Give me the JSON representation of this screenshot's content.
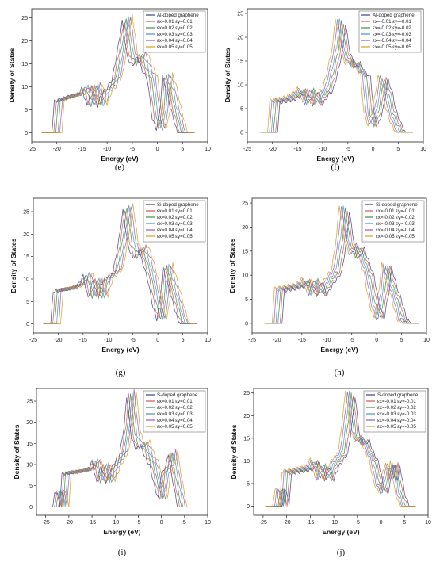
{
  "chart_data": [
    {
      "type": "line",
      "panel": "(e)",
      "xlabel": "Energy (eV)",
      "ylabel": "Density of States",
      "xlim": [
        -25,
        10
      ],
      "ylim": [
        -2,
        27
      ],
      "xticks": [
        -25,
        -20,
        -15,
        -10,
        -5,
        0,
        5,
        10
      ],
      "yticks": [
        0,
        5,
        10,
        15,
        20,
        25
      ],
      "legend": {
        "placement": "top-right"
      },
      "series": [
        {
          "name": "Al-doped graphene",
          "color": "#3a3f8f",
          "shift": -1.0
        },
        {
          "name": "εx=0.01 εy=0.01",
          "color": "#d9534f",
          "shift": -0.6
        },
        {
          "name": "εx=0.02 εy=0.02",
          "color": "#3d8f3d",
          "shift": -0.2
        },
        {
          "name": "εx=0.03 εy=0.03",
          "color": "#4a90c8",
          "shift": 0.2
        },
        {
          "name": "εx=0.04 εy=0.04",
          "color": "#9b59b6",
          "shift": 0.6
        },
        {
          "name": "εx=0.05 εy=0.05",
          "color": "#d4a017",
          "shift": 1.0
        }
      ],
      "profile": [
        [
          -21.5,
          0
        ],
        [
          -20,
          0
        ],
        [
          -19.5,
          7
        ],
        [
          -17,
          8
        ],
        [
          -15,
          8.5
        ],
        [
          -14,
          10
        ],
        [
          -13,
          6
        ],
        [
          -12,
          10.5
        ],
        [
          -11,
          6
        ],
        [
          -10,
          9
        ],
        [
          -9,
          10
        ],
        [
          -8,
          12
        ],
        [
          -7,
          18
        ],
        [
          -6,
          25
        ],
        [
          -5,
          17
        ],
        [
          -4,
          15
        ],
        [
          -3,
          17
        ],
        [
          -2,
          14
        ],
        [
          -1,
          12
        ],
        [
          0,
          3
        ],
        [
          0.8,
          0.8
        ],
        [
          1.5,
          5
        ],
        [
          2,
          12.5
        ],
        [
          3,
          9
        ],
        [
          3.5,
          6
        ],
        [
          4.5,
          2
        ],
        [
          5,
          0
        ],
        [
          6,
          0
        ]
      ]
    },
    {
      "type": "line",
      "panel": "(f)",
      "xlabel": "Energy (eV)",
      "ylabel": "Density of States",
      "xlim": [
        -25,
        10
      ],
      "ylim": [
        -2,
        26
      ],
      "xticks": [
        -25,
        -20,
        -15,
        -10,
        -5,
        0,
        5,
        10
      ],
      "yticks": [
        0,
        5,
        10,
        15,
        20,
        25
      ],
      "legend": {
        "placement": "top-right"
      },
      "series": [
        {
          "name": "Al-doped graphene",
          "color": "#3a3f8f",
          "shift": 1.0
        },
        {
          "name": "εx=-0.01 εy=-0.01",
          "color": "#d9534f",
          "shift": 0.6
        },
        {
          "name": "εx=-0.02 εy=-0.02",
          "color": "#3d8f3d",
          "shift": 0.2
        },
        {
          "name": "εx=-0.03 εy=-0.03",
          "color": "#4a90c8",
          "shift": -0.2
        },
        {
          "name": "εx=-0.04 εy=-0.04",
          "color": "#9b59b6",
          "shift": -0.6
        },
        {
          "name": "εx=-0.05 εy=-0.05",
          "color": "#d4a017",
          "shift": -1.0
        }
      ],
      "profile": [
        [
          -21,
          0
        ],
        [
          -20,
          0
        ],
        [
          -19.5,
          6.5
        ],
        [
          -17,
          7
        ],
        [
          -15,
          8
        ],
        [
          -14,
          9
        ],
        [
          -13,
          6
        ],
        [
          -12,
          9
        ],
        [
          -11,
          6
        ],
        [
          -10,
          8
        ],
        [
          -9,
          9
        ],
        [
          -8,
          13
        ],
        [
          -7,
          18
        ],
        [
          -6.5,
          23.5
        ],
        [
          -5.5,
          17
        ],
        [
          -4.5,
          14
        ],
        [
          -3.5,
          15
        ],
        [
          -2.5,
          13
        ],
        [
          -1.5,
          12
        ],
        [
          -0.8,
          4
        ],
        [
          0,
          1.5
        ],
        [
          1,
          5
        ],
        [
          2,
          11.5
        ],
        [
          3,
          8
        ],
        [
          3.5,
          5
        ],
        [
          4.5,
          2
        ],
        [
          5.5,
          0
        ],
        [
          6.5,
          0
        ]
      ]
    },
    {
      "type": "line",
      "panel": "(g)",
      "xlabel": "Energy (eV)",
      "ylabel": "Density of States",
      "xlim": [
        -25,
        10
      ],
      "ylim": [
        -2,
        28
      ],
      "xticks": [
        -25,
        -20,
        -15,
        -10,
        -5,
        0,
        5,
        10
      ],
      "yticks": [
        0,
        5,
        10,
        15,
        20,
        25
      ],
      "legend": {
        "placement": "top-right"
      },
      "series": [
        {
          "name": "Si-doped graphene",
          "color": "#3a3f8f",
          "shift": -1.0
        },
        {
          "name": "εx=0.01 εy=0.01",
          "color": "#d9534f",
          "shift": -0.6
        },
        {
          "name": "εx=0.02 εy=0.02",
          "color": "#3d8f3d",
          "shift": -0.2
        },
        {
          "name": "εx=0.03 εy=0.03",
          "color": "#4a90c8",
          "shift": 0.2
        },
        {
          "name": "εx=0.04 εy=0.04",
          "color": "#9b59b6",
          "shift": 0.6
        },
        {
          "name": "εx=0.05 εy=0.05",
          "color": "#d4a017",
          "shift": 1.0
        }
      ],
      "profile": [
        [
          -21.5,
          0
        ],
        [
          -20.5,
          0
        ],
        [
          -20,
          7.5
        ],
        [
          -17,
          8
        ],
        [
          -15,
          9
        ],
        [
          -14,
          11
        ],
        [
          -13,
          6
        ],
        [
          -12,
          10
        ],
        [
          -11,
          6
        ],
        [
          -10,
          10
        ],
        [
          -8,
          12
        ],
        [
          -7,
          18
        ],
        [
          -6,
          26
        ],
        [
          -5,
          18
        ],
        [
          -4,
          15
        ],
        [
          -3,
          17
        ],
        [
          -2,
          14
        ],
        [
          -1,
          10
        ],
        [
          0,
          4
        ],
        [
          0.8,
          1
        ],
        [
          1.5,
          6
        ],
        [
          2,
          13
        ],
        [
          3,
          9
        ],
        [
          4,
          5
        ],
        [
          5,
          1
        ],
        [
          5.5,
          0
        ],
        [
          6.5,
          0
        ]
      ]
    },
    {
      "type": "line",
      "panel": "(h)",
      "xlabel": "Energy (eV)",
      "ylabel": "Density of States",
      "xlim": [
        -25,
        10
      ],
      "ylim": [
        -2,
        26
      ],
      "xticks": [
        -25,
        -20,
        -15,
        -10,
        -5,
        0,
        5,
        10
      ],
      "yticks": [
        0,
        5,
        10,
        15,
        20,
        25
      ],
      "legend": {
        "placement": "top-right"
      },
      "series": [
        {
          "name": "Si-doped graphene",
          "color": "#3a3f8f",
          "shift": 1.0
        },
        {
          "name": "εx=-0.01 εy=-0.01",
          "color": "#d9534f",
          "shift": 0.6
        },
        {
          "name": "εx=-0.02 εy=-0.02",
          "color": "#3d8f3d",
          "shift": 0.2
        },
        {
          "name": "εx=-0.03 εy=-0.03",
          "color": "#4a90c8",
          "shift": -0.2
        },
        {
          "name": "εx=-0.04 εy=-0.04",
          "color": "#9b59b6",
          "shift": -0.6
        },
        {
          "name": "εx=-0.05 εy=-0.05",
          "color": "#d4a017",
          "shift": -1.0
        }
      ],
      "profile": [
        [
          -21,
          0
        ],
        [
          -20,
          0
        ],
        [
          -19.5,
          7
        ],
        [
          -17,
          7.5
        ],
        [
          -15,
          8
        ],
        [
          -14,
          9
        ],
        [
          -13,
          6
        ],
        [
          -12,
          9
        ],
        [
          -11,
          6
        ],
        [
          -10,
          8
        ],
        [
          -8,
          11
        ],
        [
          -7,
          18
        ],
        [
          -6.5,
          24
        ],
        [
          -5.5,
          17
        ],
        [
          -4.5,
          14
        ],
        [
          -3.5,
          16
        ],
        [
          -2.5,
          13
        ],
        [
          -1.5,
          10
        ],
        [
          -0.5,
          4
        ],
        [
          0.5,
          1
        ],
        [
          1.5,
          7
        ],
        [
          2,
          12
        ],
        [
          3,
          8
        ],
        [
          4,
          5
        ],
        [
          5,
          1
        ],
        [
          6,
          0
        ],
        [
          7,
          0
        ]
      ]
    },
    {
      "type": "line",
      "panel": "(i)",
      "xlabel": "Energy (eV)",
      "ylabel": "Density of States",
      "xlim": [
        -27,
        10
      ],
      "ylim": [
        -2,
        28
      ],
      "xticks": [
        -25,
        -20,
        -15,
        -10,
        -5,
        0,
        5,
        10
      ],
      "yticks": [
        0,
        5,
        10,
        15,
        20,
        25
      ],
      "legend": {
        "placement": "top-right"
      },
      "series": [
        {
          "name": "S-doped graphene",
          "color": "#3a3f8f",
          "shift": -1.0
        },
        {
          "name": "εx=0.01 εy=0.01",
          "color": "#d9534f",
          "shift": -0.6
        },
        {
          "name": "εx=0.02 εy=0.02",
          "color": "#3d8f3d",
          "shift": -0.2
        },
        {
          "name": "εx=0.03 εy=0.03",
          "color": "#4a90c8",
          "shift": 0.2
        },
        {
          "name": "εx=0.04 εy=0.04",
          "color": "#9b59b6",
          "shift": 0.6
        },
        {
          "name": "εx=0.05 εy=0.05",
          "color": "#d4a017",
          "shift": 1.0
        }
      ],
      "profile": [
        [
          -23.5,
          0
        ],
        [
          -22.5,
          0
        ],
        [
          -22,
          3.5
        ],
        [
          -21.5,
          3.5
        ],
        [
          -21,
          0
        ],
        [
          -20.5,
          8
        ],
        [
          -17,
          8.5
        ],
        [
          -15,
          9
        ],
        [
          -14,
          11
        ],
        [
          -13,
          6
        ],
        [
          -12,
          10
        ],
        [
          -11,
          6
        ],
        [
          -10,
          9
        ],
        [
          -8,
          13
        ],
        [
          -7,
          20
        ],
        [
          -6.5,
          27
        ],
        [
          -5.5,
          17
        ],
        [
          -4.5,
          14
        ],
        [
          -3.5,
          15
        ],
        [
          -2.5,
          12
        ],
        [
          -1.5,
          10
        ],
        [
          -0.5,
          5
        ],
        [
          0.3,
          2
        ],
        [
          1,
          8
        ],
        [
          2,
          10
        ],
        [
          2.5,
          13
        ],
        [
          3,
          9
        ],
        [
          4,
          3
        ],
        [
          4.5,
          0
        ],
        [
          5.5,
          0
        ]
      ]
    },
    {
      "type": "line",
      "panel": "(j)",
      "xlabel": "Energy (eV)",
      "ylabel": "Density of States",
      "xlim": [
        -27,
        10
      ],
      "ylim": [
        -2,
        26
      ],
      "xticks": [
        -25,
        -20,
        -15,
        -10,
        -5,
        0,
        5,
        10
      ],
      "yticks": [
        0,
        5,
        10,
        15,
        20,
        25
      ],
      "legend": {
        "placement": "top-right"
      },
      "series": [
        {
          "name": "S-doped graphene",
          "color": "#3a3f8f",
          "shift": 1.0
        },
        {
          "name": "εx=-0.01 εy=-0.01",
          "color": "#d9534f",
          "shift": 0.6
        },
        {
          "name": "εx=-0.02 εy=-0.02",
          "color": "#3d8f3d",
          "shift": 0.2
        },
        {
          "name": "εx=-0.03 εy=-0.03",
          "color": "#4a90c8",
          "shift": -0.2
        },
        {
          "name": "εx=-0.04 εy=-0.04",
          "color": "#9b59b6",
          "shift": -0.6
        },
        {
          "name": "εx=-0.05 εy=-0.05",
          "color": "#d4a017",
          "shift": -1.0
        }
      ],
      "profile": [
        [
          -23,
          0
        ],
        [
          -22,
          0
        ],
        [
          -21.5,
          3.5
        ],
        [
          -21,
          3.5
        ],
        [
          -20.5,
          0
        ],
        [
          -20,
          7.5
        ],
        [
          -17,
          8
        ],
        [
          -15,
          8.5
        ],
        [
          -14,
          10
        ],
        [
          -13,
          6
        ],
        [
          -12,
          9
        ],
        [
          -11,
          6
        ],
        [
          -10,
          9
        ],
        [
          -8,
          12
        ],
        [
          -7,
          20
        ],
        [
          -6.5,
          25
        ],
        [
          -5.5,
          16
        ],
        [
          -4.5,
          14
        ],
        [
          -3.5,
          15
        ],
        [
          -2.5,
          12
        ],
        [
          -1.5,
          10
        ],
        [
          -0.5,
          5
        ],
        [
          0.5,
          3
        ],
        [
          1.5,
          8
        ],
        [
          2,
          9
        ],
        [
          2.5,
          6
        ],
        [
          3,
          9.5
        ],
        [
          4,
          3
        ],
        [
          5,
          0
        ],
        [
          6,
          0
        ]
      ]
    }
  ]
}
